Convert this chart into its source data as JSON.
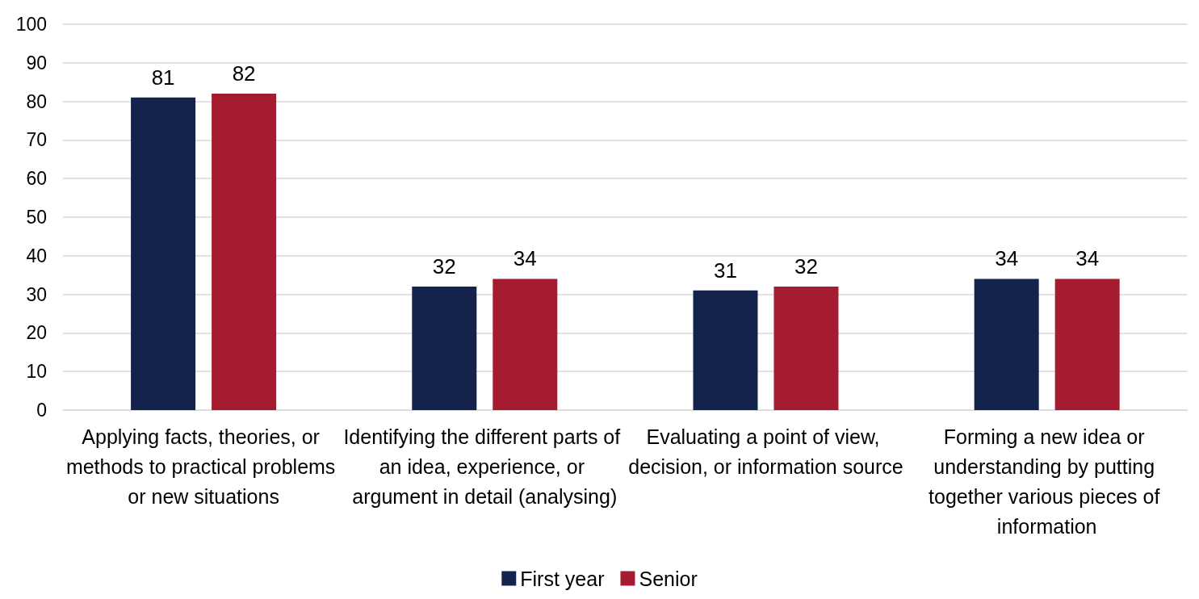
{
  "chart_data": {
    "type": "bar",
    "categories": [
      "Applying facts, theories, or methods to practical problems or new situations",
      "Identifying the different parts of an idea, experience, or argument in detail (analysing)",
      "Evaluating a point of view, decision, or information source",
      "Forming a new idea or understanding by putting together various pieces of information"
    ],
    "series": [
      {
        "name": "First year",
        "color": "#14234b",
        "values": [
          81,
          32,
          31,
          34
        ]
      },
      {
        "name": "Senior",
        "color": "#a51c30",
        "values": [
          82,
          34,
          32,
          34
        ]
      }
    ],
    "ylim": [
      0,
      100
    ],
    "yticks": [
      0,
      10,
      20,
      30,
      40,
      50,
      60,
      70,
      80,
      90,
      100
    ],
    "grid": "y",
    "legend": "bottom",
    "data_labels": true
  }
}
